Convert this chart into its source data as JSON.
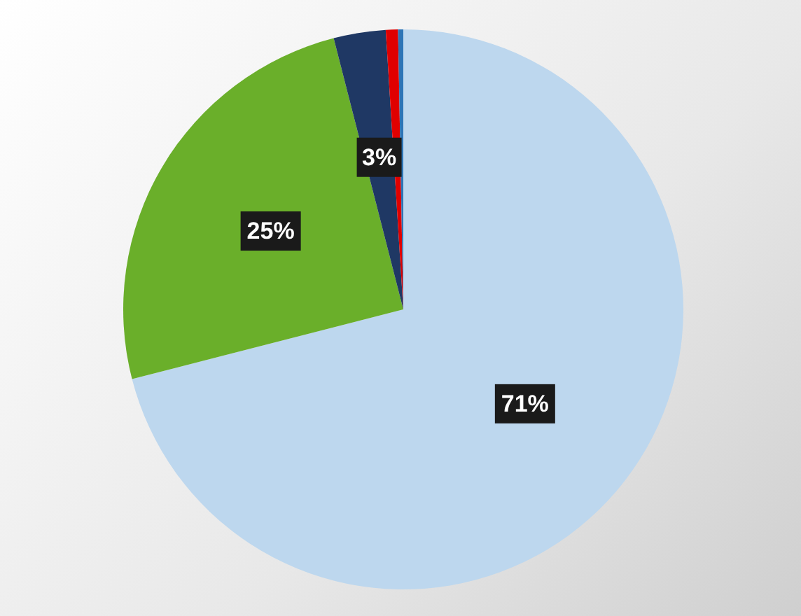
{
  "chart_data": {
    "type": "pie",
    "categories": [
      null,
      null,
      null,
      null,
      null
    ],
    "values": [
      71,
      25,
      3,
      0.7,
      0.3
    ],
    "colors": [
      "#bdd7ee",
      "#6aaf2a",
      "#1f3864",
      "#e00000",
      "#2e75b6"
    ],
    "value_labels": [
      "71%",
      "25%",
      "3%",
      null,
      null
    ],
    "legend": false
  }
}
